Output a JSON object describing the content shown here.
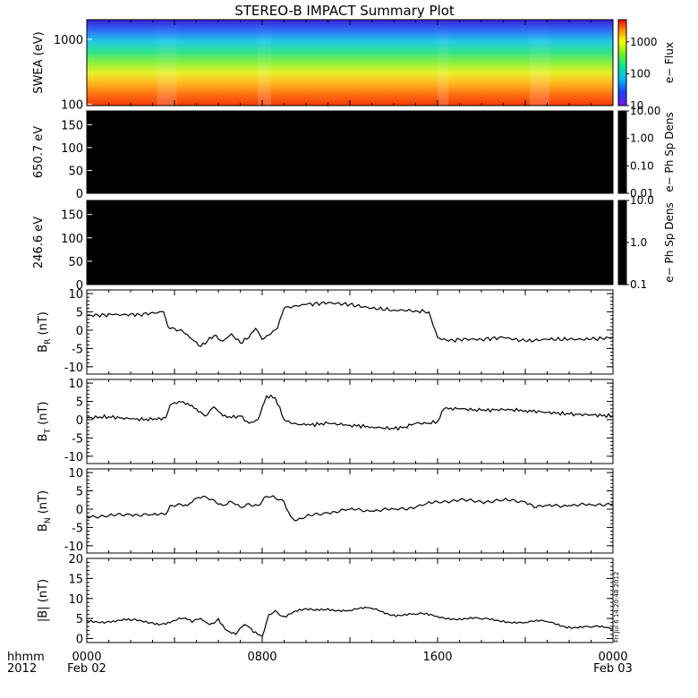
{
  "title": "STEREO-B IMPACT Summary Plot",
  "stamp": "Fri Jul  6 14:20:48 2012",
  "x_axis": {
    "corner_label_top": "hhmm",
    "corner_label_bottom": "2012",
    "ticks": [
      {
        "hour": 0,
        "label": "0000",
        "sublabel": "Feb 02"
      },
      {
        "hour": 8,
        "label": "0800",
        "sublabel": ""
      },
      {
        "hour": 16,
        "label": "1600",
        "sublabel": ""
      },
      {
        "hour": 24,
        "label": "0000",
        "sublabel": "Feb 03"
      }
    ]
  },
  "chart_data": [
    {
      "type": "heatmap",
      "ylabel": "SWEA (eV)",
      "yscale": "log",
      "ylim": [
        95,
        2000
      ],
      "yticks": [
        "100",
        "1000"
      ],
      "colorbar": {
        "label": "e− Flux",
        "scale": "log",
        "ticks": [
          "10",
          "100",
          "1000"
        ],
        "range": [
          10,
          5000
        ]
      },
      "x_range_hours": [
        0,
        24
      ],
      "notes_key": "dips"
    },
    {
      "type": "heatmap",
      "ylabel": "650.7 eV",
      "ylim": [
        0,
        180
      ],
      "yticks": [
        "0",
        "50",
        "100",
        "150"
      ],
      "colorbar": {
        "label": "e− Ph Sp Dens",
        "scale": "log",
        "ticks": [
          "0.01",
          "0.10",
          "1.00",
          "10.00"
        ]
      },
      "fill": "#000000"
    },
    {
      "type": "heatmap",
      "ylabel": "246.6 eV",
      "ylim": [
        0,
        180
      ],
      "yticks": [
        "0",
        "50",
        "100",
        "150"
      ],
      "colorbar": {
        "label": "e− Ph Sp Dens",
        "scale": "log",
        "ticks": [
          "0.1",
          "1.0",
          "10.0"
        ]
      },
      "fill": "#000000"
    },
    {
      "type": "line",
      "ylabel_main": "B",
      "ylabel_sub": "R",
      "ylabel_unit": " (nT)",
      "ylim": [
        -12,
        11
      ],
      "yticks": [
        "-10",
        "-5",
        "0",
        "5",
        "10"
      ],
      "x": [
        0,
        1.2,
        2.4,
        3.5,
        3.7,
        4.0,
        4.4,
        4.8,
        5.2,
        5.5,
        5.8,
        6.2,
        6.6,
        7.0,
        7.4,
        7.7,
        8.0,
        8.4,
        8.7,
        9.0,
        9.4,
        10.0,
        11.0,
        12.0,
        13.0,
        14.0,
        15.0,
        15.6,
        16.0,
        16.5,
        17.0,
        18.0,
        19.0,
        20.0,
        21.0,
        22.0,
        23.0,
        24.0
      ],
      "y": [
        4.0,
        4.2,
        4.3,
        5.0,
        1.0,
        0.5,
        -0.5,
        -2.5,
        -4.5,
        -3.0,
        -1.5,
        -3.0,
        -1.0,
        -3.5,
        -2.0,
        0.5,
        -2.5,
        -1.0,
        0.5,
        6.0,
        6.5,
        7.0,
        7.5,
        7.0,
        6.0,
        5.5,
        5.3,
        5.0,
        -2.0,
        -3.0,
        -2.5,
        -2.5,
        -2.0,
        -3.0,
        -2.5,
        -2.5,
        -2.5,
        -2.0
      ]
    },
    {
      "type": "line",
      "ylabel_main": "B",
      "ylabel_sub": "T",
      "ylabel_unit": " (nT)",
      "ylim": [
        -12,
        11
      ],
      "yticks": [
        "-10",
        "-5",
        "0",
        "5",
        "10"
      ],
      "x": [
        0,
        1.0,
        2.0,
        3.0,
        3.6,
        3.8,
        4.2,
        4.6,
        5.0,
        5.4,
        5.8,
        6.2,
        6.6,
        7.0,
        7.4,
        7.8,
        8.2,
        8.6,
        9.0,
        9.3,
        10.0,
        11.0,
        12.0,
        13.0,
        14.0,
        14.5,
        15.0,
        15.6,
        16.0,
        16.3,
        17.0,
        18.0,
        19.0,
        20.0,
        21.0,
        22.0,
        23.0,
        24.0
      ],
      "y": [
        0.5,
        0.8,
        0.2,
        0.0,
        0.5,
        4.0,
        5.0,
        4.5,
        3.0,
        1.0,
        3.5,
        1.0,
        0.5,
        1.0,
        -1.0,
        0.0,
        6.5,
        6.0,
        0.0,
        -1.0,
        -1.5,
        -1.0,
        -1.5,
        -2.0,
        -2.5,
        -2.0,
        -1.0,
        -1.0,
        -0.5,
        3.0,
        3.0,
        2.5,
        2.8,
        2.5,
        2.0,
        1.5,
        1.3,
        1.0
      ]
    },
    {
      "type": "line",
      "ylabel_main": "B",
      "ylabel_sub": "N",
      "ylabel_unit": " (nT)",
      "ylim": [
        -12,
        11
      ],
      "yticks": [
        "-10",
        "-5",
        "0",
        "5",
        "10"
      ],
      "x": [
        0,
        1.0,
        2.0,
        3.0,
        3.6,
        3.8,
        4.2,
        4.6,
        5.0,
        5.4,
        5.8,
        6.2,
        6.6,
        7.0,
        7.4,
        7.8,
        8.2,
        8.6,
        9.0,
        9.3,
        9.6,
        10.0,
        11.0,
        12.0,
        13.0,
        14.0,
        15.0,
        15.5,
        16.0,
        17.0,
        18.0,
        19.0,
        20.0,
        20.5,
        21.0,
        22.0,
        23.0,
        24.0
      ],
      "y": [
        -2.0,
        -1.8,
        -1.5,
        -1.5,
        -1.5,
        1.0,
        1.5,
        1.0,
        3.0,
        3.5,
        2.5,
        1.0,
        2.0,
        0.5,
        1.5,
        1.0,
        3.5,
        3.0,
        2.0,
        -2.0,
        -3.0,
        -2.0,
        -1.0,
        0.0,
        -0.5,
        0.0,
        0.5,
        1.5,
        2.0,
        2.5,
        2.0,
        2.5,
        2.0,
        0.5,
        1.0,
        1.0,
        1.2,
        1.5
      ]
    },
    {
      "type": "line",
      "ylabel_main": "|B|",
      "ylabel_sub": "",
      "ylabel_unit": " (nT)",
      "ylim": [
        -1,
        20
      ],
      "yticks": [
        "0",
        "5",
        "10",
        "15",
        "20"
      ],
      "x": [
        0,
        1.0,
        2.0,
        3.0,
        3.5,
        4.0,
        4.4,
        4.8,
        5.2,
        5.6,
        6.0,
        6.4,
        6.8,
        7.2,
        7.6,
        8.0,
        8.3,
        8.6,
        9.0,
        9.4,
        9.8,
        10.4,
        11.0,
        12.0,
        13.0,
        14.0,
        15.0,
        15.6,
        16.0,
        17.0,
        18.0,
        19.0,
        20.0,
        21.0,
        22.0,
        23.0,
        24.0
      ],
      "y": [
        4.5,
        4.3,
        4.5,
        4.0,
        3.8,
        4.5,
        5.0,
        4.0,
        5.0,
        3.5,
        5.0,
        2.0,
        1.0,
        3.5,
        1.5,
        0.5,
        6.0,
        7.0,
        5.5,
        6.5,
        7.0,
        7.0,
        7.5,
        7.0,
        7.5,
        6.0,
        6.0,
        5.8,
        5.5,
        5.0,
        4.8,
        4.5,
        4.0,
        4.2,
        3.0,
        2.8,
        2.5
      ]
    }
  ]
}
